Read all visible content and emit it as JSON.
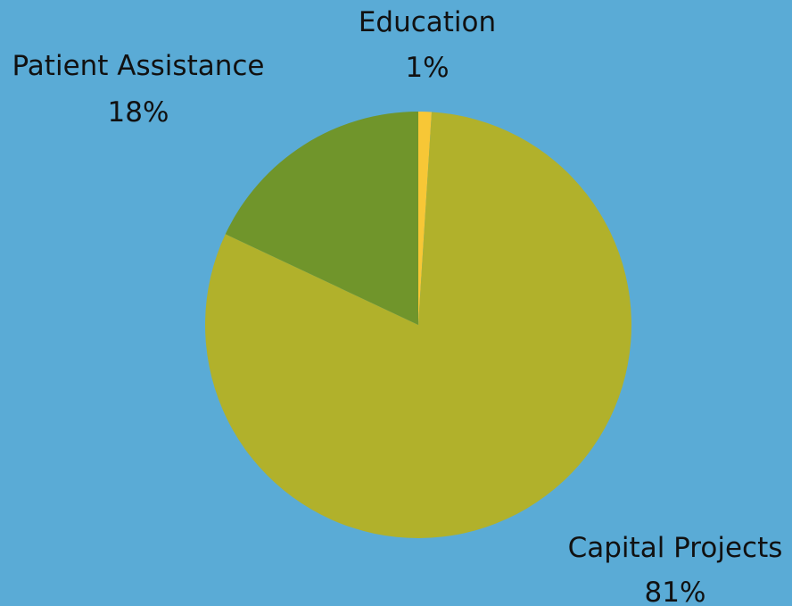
{
  "background": "#5aabd6",
  "chart_data": {
    "type": "pie",
    "title": "",
    "start": "top",
    "direction": "clockwise",
    "slices": [
      {
        "label": "Education",
        "value": 1,
        "value_label": "1%",
        "color": "#f7c736"
      },
      {
        "label": "Capital Projects",
        "value": 81,
        "value_label": "81%",
        "color": "#b1b12b"
      },
      {
        "label": "Patient Assistance",
        "value": 18,
        "value_label": "18%",
        "color": "#70952b"
      }
    ]
  }
}
